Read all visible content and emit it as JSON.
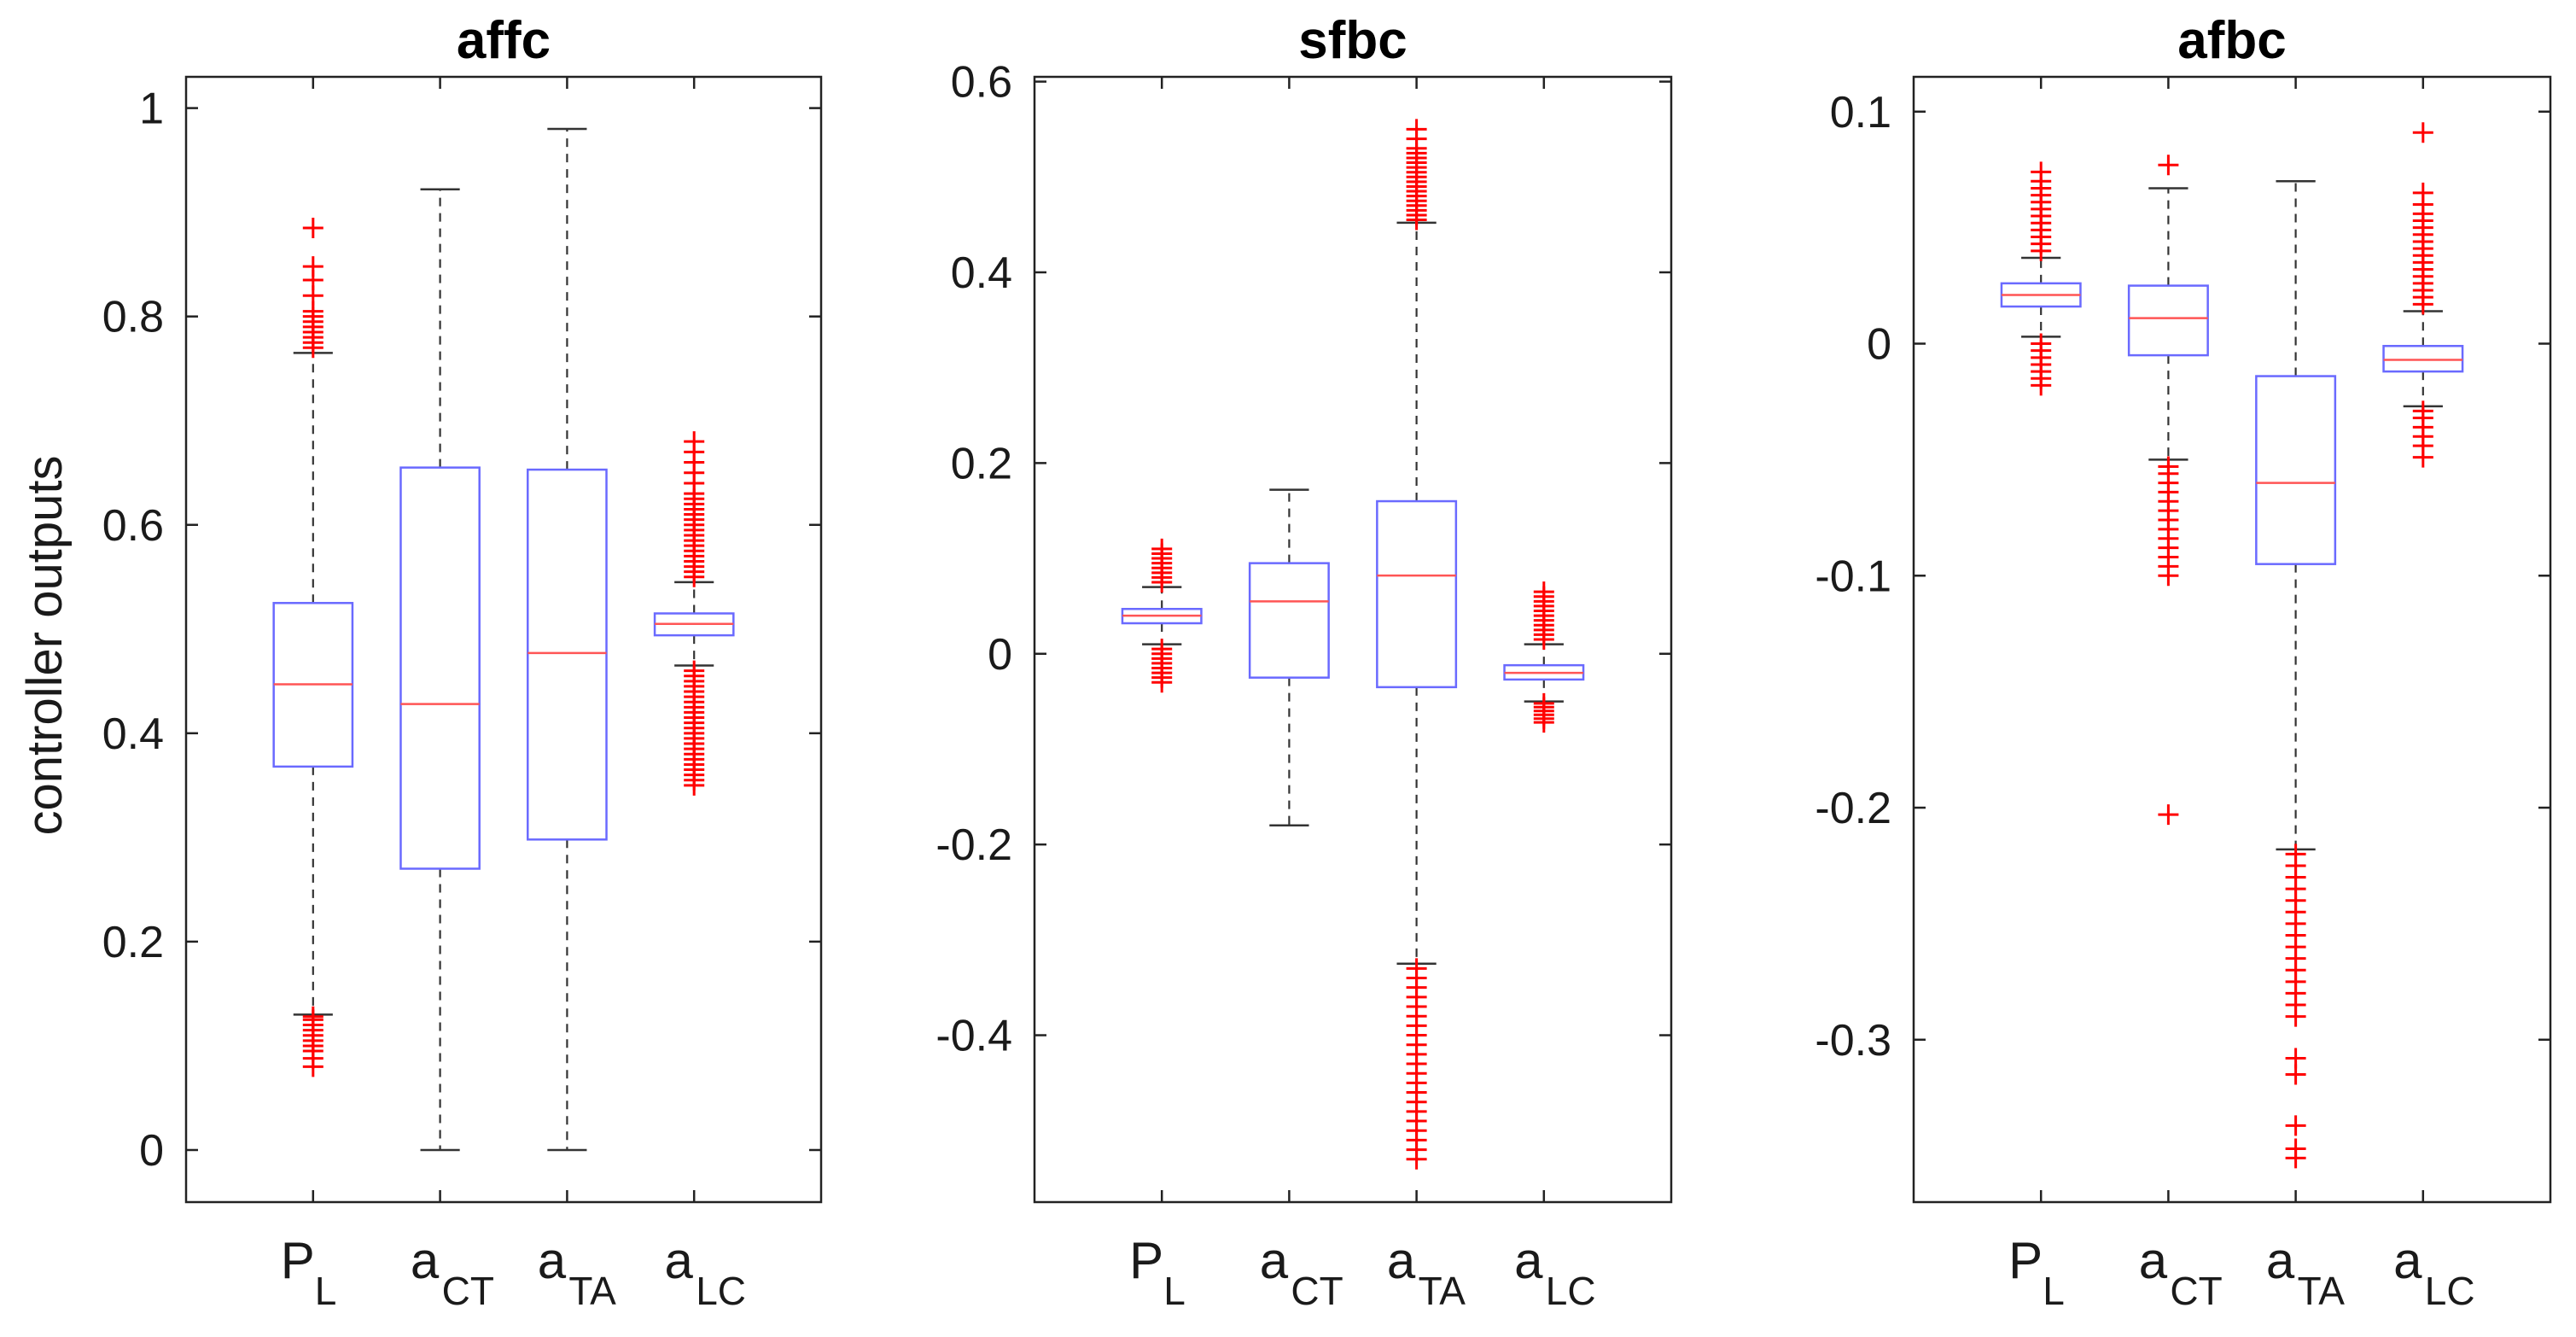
{
  "figure": {
    "ylabel": "controller outputs",
    "categories": [
      {
        "main": "P",
        "sub": "L"
      },
      {
        "main": "a",
        "sub": "CT"
      },
      {
        "main": "a",
        "sub": "TA"
      },
      {
        "main": "a",
        "sub": "LC"
      }
    ],
    "colors": {
      "box": "#6a6aff",
      "median": "#ff5555",
      "outlier": "#ff0000",
      "whisker": "#333333",
      "axis": "#222222"
    }
  },
  "chart_data": [
    {
      "type": "box",
      "title": "affc",
      "ylim": [
        -0.05,
        1.03
      ],
      "yticks": [
        0,
        0.2,
        0.4,
        0.6,
        0.8,
        1
      ],
      "ytick_labels": [
        "0",
        "0.2",
        "0.4",
        "0.6",
        "0.8",
        "1"
      ],
      "boxes": [
        {
          "category": "P_L",
          "whisker_low": 0.13,
          "q1": 0.368,
          "median": 0.447,
          "q3": 0.525,
          "whisker_high": 0.765,
          "outliers": [
            0.08,
            0.088,
            0.095,
            0.1,
            0.105,
            0.11,
            0.115,
            0.12,
            0.125,
            0.128,
            0.77,
            0.775,
            0.78,
            0.785,
            0.79,
            0.795,
            0.8,
            0.805,
            0.82,
            0.835,
            0.848,
            0.885
          ]
        },
        {
          "category": "a_CT",
          "whisker_low": 0.0,
          "q1": 0.27,
          "median": 0.428,
          "q3": 0.655,
          "whisker_high": 0.922,
          "outliers": []
        },
        {
          "category": "a_TA",
          "whisker_low": 0.0,
          "q1": 0.298,
          "median": 0.477,
          "q3": 0.653,
          "whisker_high": 0.98,
          "outliers": []
        },
        {
          "category": "a_LC",
          "whisker_low": 0.465,
          "q1": 0.494,
          "median": 0.505,
          "q3": 0.515,
          "whisker_high": 0.545,
          "outliers": [
            0.35,
            0.355,
            0.36,
            0.365,
            0.37,
            0.375,
            0.38,
            0.385,
            0.39,
            0.395,
            0.4,
            0.405,
            0.41,
            0.415,
            0.42,
            0.425,
            0.43,
            0.435,
            0.44,
            0.445,
            0.45,
            0.455,
            0.46,
            0.55,
            0.555,
            0.56,
            0.565,
            0.57,
            0.575,
            0.58,
            0.585,
            0.59,
            0.595,
            0.6,
            0.605,
            0.61,
            0.615,
            0.62,
            0.625,
            0.63,
            0.64,
            0.65,
            0.66,
            0.67,
            0.68
          ]
        }
      ]
    },
    {
      "type": "box",
      "title": "sfbc",
      "ylim": [
        -0.575,
        0.605
      ],
      "yticks": [
        -0.4,
        -0.2,
        0,
        0.2,
        0.4,
        0.6
      ],
      "ytick_labels": [
        "-0.4",
        "-0.2",
        "0",
        "0.2",
        "0.4",
        "0.6"
      ],
      "boxes": [
        {
          "category": "P_L",
          "whisker_low": 0.01,
          "q1": 0.032,
          "median": 0.04,
          "q3": 0.047,
          "whisker_high": 0.07,
          "outliers": [
            -0.03,
            -0.025,
            -0.02,
            -0.015,
            -0.01,
            -0.005,
            0.0,
            0.005,
            0.075,
            0.08,
            0.085,
            0.09,
            0.095,
            0.1,
            0.105,
            0.11
          ]
        },
        {
          "category": "a_CT",
          "whisker_low": -0.18,
          "q1": -0.025,
          "median": 0.055,
          "q3": 0.095,
          "whisker_high": 0.172,
          "outliers": []
        },
        {
          "category": "a_TA",
          "whisker_low": -0.325,
          "q1": -0.035,
          "median": 0.082,
          "q3": 0.16,
          "whisker_high": 0.452,
          "outliers": [
            -0.53,
            -0.52,
            -0.51,
            -0.5,
            -0.49,
            -0.48,
            -0.47,
            -0.46,
            -0.45,
            -0.44,
            -0.43,
            -0.42,
            -0.41,
            -0.4,
            -0.39,
            -0.38,
            -0.37,
            -0.36,
            -0.35,
            -0.34,
            -0.33,
            0.455,
            0.46,
            0.465,
            0.47,
            0.475,
            0.48,
            0.485,
            0.49,
            0.495,
            0.5,
            0.505,
            0.51,
            0.515,
            0.52,
            0.525,
            0.53,
            0.54,
            0.55
          ]
        },
        {
          "category": "a_LC",
          "whisker_low": -0.05,
          "q1": -0.027,
          "median": -0.02,
          "q3": -0.012,
          "whisker_high": 0.01,
          "outliers": [
            -0.072,
            -0.068,
            -0.064,
            -0.06,
            -0.056,
            -0.052,
            0.015,
            0.02,
            0.025,
            0.03,
            0.035,
            0.04,
            0.045,
            0.05,
            0.055,
            0.06,
            0.065
          ]
        }
      ]
    },
    {
      "type": "box",
      "title": "afbc",
      "ylim": [
        -0.37,
        0.115
      ],
      "yticks": [
        -0.3,
        -0.2,
        -0.1,
        0,
        0.1
      ],
      "ytick_labels": [
        "-0.3",
        "-0.2",
        "-0.1",
        "0",
        "0.1"
      ],
      "boxes": [
        {
          "category": "P_L",
          "whisker_low": 0.003,
          "q1": 0.016,
          "median": 0.021,
          "q3": 0.026,
          "whisker_high": 0.037,
          "outliers": [
            -0.018,
            -0.015,
            -0.012,
            -0.009,
            -0.006,
            -0.003,
            0.0,
            0.04,
            0.043,
            0.046,
            0.049,
            0.052,
            0.055,
            0.058,
            0.061,
            0.064,
            0.067,
            0.07,
            0.074
          ]
        },
        {
          "category": "a_CT",
          "whisker_low": -0.05,
          "q1": -0.005,
          "median": 0.011,
          "q3": 0.025,
          "whisker_high": 0.067,
          "outliers": [
            -0.203,
            -0.1,
            -0.096,
            -0.092,
            -0.088,
            -0.084,
            -0.08,
            -0.076,
            -0.072,
            -0.068,
            -0.064,
            -0.06,
            -0.056,
            -0.053,
            0.077
          ]
        },
        {
          "category": "a_TA",
          "whisker_low": -0.218,
          "q1": -0.095,
          "median": -0.06,
          "q3": -0.014,
          "whisker_high": 0.07,
          "outliers": [
            -0.351,
            -0.347,
            -0.337,
            -0.315,
            -0.308,
            -0.29,
            -0.285,
            -0.28,
            -0.275,
            -0.27,
            -0.265,
            -0.26,
            -0.255,
            -0.25,
            -0.245,
            -0.24,
            -0.235,
            -0.23,
            -0.225,
            -0.22
          ]
        },
        {
          "category": "a_LC",
          "whisker_low": -0.027,
          "q1": -0.012,
          "median": -0.007,
          "q3": -0.001,
          "whisker_high": 0.014,
          "outliers": [
            -0.049,
            -0.044,
            -0.04,
            -0.036,
            -0.032,
            -0.029,
            0.017,
            0.02,
            0.023,
            0.026,
            0.029,
            0.032,
            0.035,
            0.038,
            0.041,
            0.044,
            0.047,
            0.05,
            0.053,
            0.056,
            0.06,
            0.065,
            0.091
          ]
        }
      ]
    }
  ]
}
